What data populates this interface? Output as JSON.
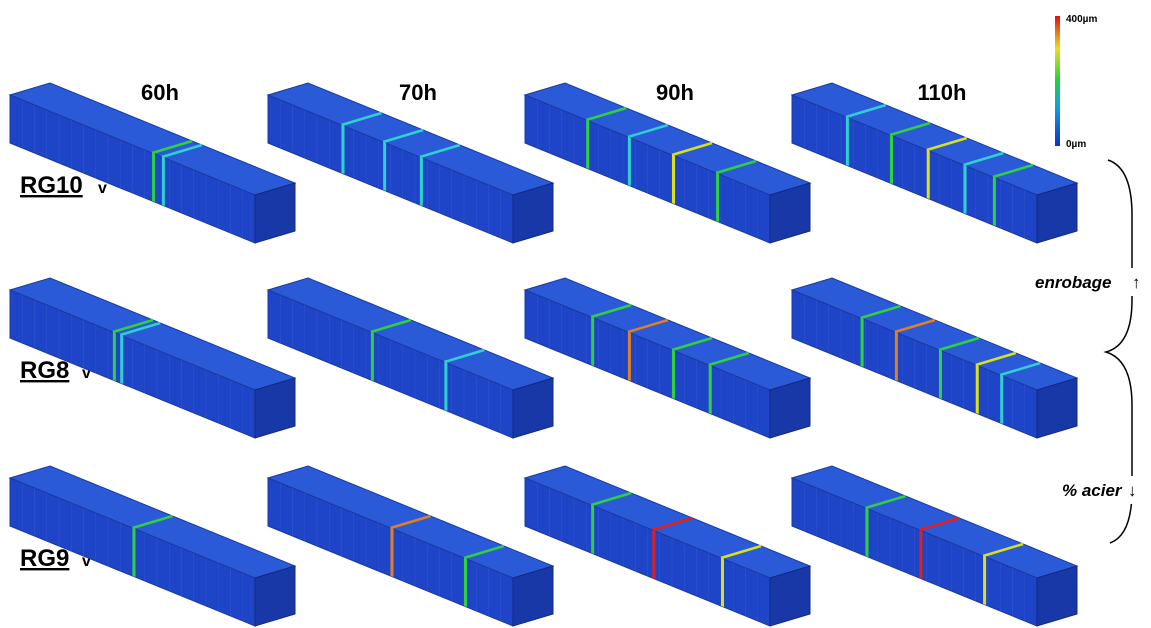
{
  "header": {
    "columns": [
      "60h",
      "70h",
      "90h",
      "110h"
    ]
  },
  "rows": [
    {
      "label": "RG10",
      "suffix": "v"
    },
    {
      "label": "RG8",
      "suffix": "v"
    },
    {
      "label": "RG9",
      "suffix": "v"
    }
  ],
  "colorbar": {
    "max_label": "400µm",
    "min_label": "0µm"
  },
  "annotations": {
    "enrobage": "enrobage",
    "up_arrow": "↑",
    "acier": "% acier",
    "down_arrow": "↓"
  }
}
